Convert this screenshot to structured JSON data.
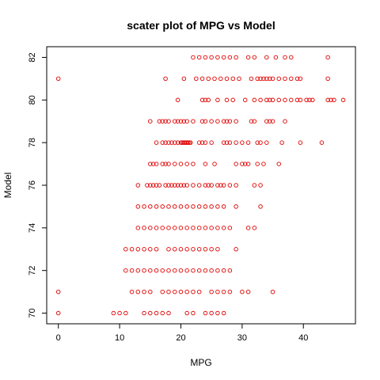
{
  "chart_data": {
    "type": "scatter",
    "title": "scater plot of MPG vs Model",
    "xlabel": "MPG",
    "ylabel": "Model",
    "xlim": [
      -1.9,
      48.5
    ],
    "ylim": [
      69.5,
      82.5
    ],
    "xticks": [
      0,
      10,
      20,
      30,
      40
    ],
    "yticks": [
      70,
      72,
      74,
      76,
      78,
      80,
      82
    ],
    "grid": false,
    "legend": "none",
    "point_color": "#e00000",
    "series": [
      {
        "points": [
          [
            0,
            70
          ],
          [
            9,
            70
          ],
          [
            10,
            70
          ],
          [
            11,
            70
          ],
          [
            14,
            70
          ],
          [
            15,
            70
          ],
          [
            16,
            70
          ],
          [
            17,
            70
          ],
          [
            18,
            70
          ],
          [
            21,
            70
          ],
          [
            22,
            70
          ],
          [
            24,
            70
          ],
          [
            25,
            70
          ],
          [
            26,
            70
          ],
          [
            27,
            70
          ],
          [
            0,
            71
          ],
          [
            12,
            71
          ],
          [
            13,
            71
          ],
          [
            14,
            71
          ],
          [
            15,
            71
          ],
          [
            17,
            71
          ],
          [
            18,
            71
          ],
          [
            19,
            71
          ],
          [
            20,
            71
          ],
          [
            21,
            71
          ],
          [
            22,
            71
          ],
          [
            23,
            71
          ],
          [
            25,
            71
          ],
          [
            26,
            71
          ],
          [
            27,
            71
          ],
          [
            28,
            71
          ],
          [
            30,
            71
          ],
          [
            31,
            71
          ],
          [
            35,
            71
          ],
          [
            11,
            72
          ],
          [
            12,
            72
          ],
          [
            13,
            72
          ],
          [
            14,
            72
          ],
          [
            15,
            72
          ],
          [
            16,
            72
          ],
          [
            17,
            72
          ],
          [
            18,
            72
          ],
          [
            19,
            72
          ],
          [
            20,
            72
          ],
          [
            21,
            72
          ],
          [
            22,
            72
          ],
          [
            23,
            72
          ],
          [
            24,
            72
          ],
          [
            25,
            72
          ],
          [
            26,
            72
          ],
          [
            27,
            72
          ],
          [
            28,
            72
          ],
          [
            11,
            73
          ],
          [
            12,
            73
          ],
          [
            13,
            73
          ],
          [
            14,
            73
          ],
          [
            15,
            73
          ],
          [
            16,
            73
          ],
          [
            18,
            73
          ],
          [
            19,
            73
          ],
          [
            20,
            73
          ],
          [
            21,
            73
          ],
          [
            22,
            73
          ],
          [
            23,
            73
          ],
          [
            24,
            73
          ],
          [
            25,
            73
          ],
          [
            26,
            73
          ],
          [
            29,
            73
          ],
          [
            13,
            74
          ],
          [
            14,
            74
          ],
          [
            15,
            74
          ],
          [
            16,
            74
          ],
          [
            17,
            74
          ],
          [
            18,
            74
          ],
          [
            19,
            74
          ],
          [
            20,
            74
          ],
          [
            21,
            74
          ],
          [
            22,
            74
          ],
          [
            23,
            74
          ],
          [
            24,
            74
          ],
          [
            25,
            74
          ],
          [
            26,
            74
          ],
          [
            27,
            74
          ],
          [
            28,
            74
          ],
          [
            31,
            74
          ],
          [
            32,
            74
          ],
          [
            13,
            75
          ],
          [
            14,
            75
          ],
          [
            15,
            75
          ],
          [
            16,
            75
          ],
          [
            17,
            75
          ],
          [
            18,
            75
          ],
          [
            19,
            75
          ],
          [
            20,
            75
          ],
          [
            21,
            75
          ],
          [
            22,
            75
          ],
          [
            23,
            75
          ],
          [
            24,
            75
          ],
          [
            25,
            75
          ],
          [
            26,
            75
          ],
          [
            27,
            75
          ],
          [
            29,
            75
          ],
          [
            33,
            75
          ],
          [
            13,
            76
          ],
          [
            14.5,
            76
          ],
          [
            15,
            76
          ],
          [
            15.5,
            76
          ],
          [
            16,
            76
          ],
          [
            16.5,
            76
          ],
          [
            17.5,
            76
          ],
          [
            18,
            76
          ],
          [
            18.5,
            76
          ],
          [
            19,
            76
          ],
          [
            19.5,
            76
          ],
          [
            20,
            76
          ],
          [
            20.5,
            76
          ],
          [
            21,
            76
          ],
          [
            22,
            76
          ],
          [
            23,
            76
          ],
          [
            24,
            76
          ],
          [
            24.5,
            76
          ],
          [
            25,
            76
          ],
          [
            26,
            76
          ],
          [
            26.5,
            76
          ],
          [
            27,
            76
          ],
          [
            28,
            76
          ],
          [
            29,
            76
          ],
          [
            32,
            76
          ],
          [
            33,
            76
          ],
          [
            15,
            77
          ],
          [
            15.5,
            77
          ],
          [
            16,
            77
          ],
          [
            17,
            77
          ],
          [
            17.5,
            77
          ],
          [
            18,
            77
          ],
          [
            19,
            77
          ],
          [
            20,
            77
          ],
          [
            21,
            77
          ],
          [
            22,
            77
          ],
          [
            24,
            77
          ],
          [
            25.5,
            77
          ],
          [
            29,
            77
          ],
          [
            30,
            77
          ],
          [
            30.5,
            77
          ],
          [
            31,
            77
          ],
          [
            32.5,
            77
          ],
          [
            33.5,
            77
          ],
          [
            36,
            77
          ],
          [
            16,
            78
          ],
          [
            17,
            78
          ],
          [
            17.5,
            78
          ],
          [
            18,
            78
          ],
          [
            18.5,
            78
          ],
          [
            19,
            78
          ],
          [
            19.5,
            78
          ],
          [
            20,
            78
          ],
          [
            20.2,
            78
          ],
          [
            20.4,
            78
          ],
          [
            20.6,
            78
          ],
          [
            20.8,
            78
          ],
          [
            21,
            78
          ],
          [
            21.2,
            78
          ],
          [
            21.4,
            78
          ],
          [
            21.6,
            78
          ],
          [
            23,
            78
          ],
          [
            23.5,
            78
          ],
          [
            24,
            78
          ],
          [
            25,
            78
          ],
          [
            27,
            78
          ],
          [
            27.5,
            78
          ],
          [
            28,
            78
          ],
          [
            29,
            78
          ],
          [
            30,
            78
          ],
          [
            31,
            78
          ],
          [
            32.5,
            78
          ],
          [
            33,
            78
          ],
          [
            34,
            78
          ],
          [
            36.5,
            78
          ],
          [
            39.5,
            78
          ],
          [
            43,
            78
          ],
          [
            15,
            79
          ],
          [
            16.5,
            79
          ],
          [
            17,
            79
          ],
          [
            17.5,
            79
          ],
          [
            18,
            79
          ],
          [
            19,
            79
          ],
          [
            19.5,
            79
          ],
          [
            20,
            79
          ],
          [
            20.5,
            79
          ],
          [
            21,
            79
          ],
          [
            22,
            79
          ],
          [
            23.5,
            79
          ],
          [
            24,
            79
          ],
          [
            25,
            79
          ],
          [
            26,
            79
          ],
          [
            27,
            79
          ],
          [
            27.5,
            79
          ],
          [
            28,
            79
          ],
          [
            29,
            79
          ],
          [
            31.5,
            79
          ],
          [
            32,
            79
          ],
          [
            34,
            79
          ],
          [
            34.5,
            79
          ],
          [
            35,
            79
          ],
          [
            37,
            79
          ],
          [
            19.5,
            80
          ],
          [
            23.5,
            80
          ],
          [
            24,
            80
          ],
          [
            24.5,
            80
          ],
          [
            26,
            80
          ],
          [
            27.5,
            80
          ],
          [
            28.5,
            80
          ],
          [
            30.5,
            80
          ],
          [
            32,
            80
          ],
          [
            33,
            80
          ],
          [
            34,
            80
          ],
          [
            34.5,
            80
          ],
          [
            35,
            80
          ],
          [
            36,
            80
          ],
          [
            37,
            80
          ],
          [
            38,
            80
          ],
          [
            39,
            80
          ],
          [
            39.5,
            80
          ],
          [
            40.5,
            80
          ],
          [
            41,
            80
          ],
          [
            41.5,
            80
          ],
          [
            44,
            80
          ],
          [
            44.5,
            80
          ],
          [
            45,
            80
          ],
          [
            46.5,
            80
          ],
          [
            0,
            81
          ],
          [
            17.5,
            81
          ],
          [
            20.5,
            81
          ],
          [
            22.5,
            81
          ],
          [
            23.5,
            81
          ],
          [
            24.5,
            81
          ],
          [
            25.5,
            81
          ],
          [
            26.5,
            81
          ],
          [
            27.5,
            81
          ],
          [
            28.5,
            81
          ],
          [
            29.5,
            81
          ],
          [
            31.5,
            81
          ],
          [
            32.5,
            81
          ],
          [
            33,
            81
          ],
          [
            33.5,
            81
          ],
          [
            34,
            81
          ],
          [
            34.5,
            81
          ],
          [
            35,
            81
          ],
          [
            36,
            81
          ],
          [
            37,
            81
          ],
          [
            38,
            81
          ],
          [
            39,
            81
          ],
          [
            39.5,
            81
          ],
          [
            44,
            81
          ],
          [
            22,
            82
          ],
          [
            23,
            82
          ],
          [
            24,
            82
          ],
          [
            25,
            82
          ],
          [
            26,
            82
          ],
          [
            27,
            82
          ],
          [
            28,
            82
          ],
          [
            29,
            82
          ],
          [
            31,
            82
          ],
          [
            32,
            82
          ],
          [
            34,
            82
          ],
          [
            35.5,
            82
          ],
          [
            37,
            82
          ],
          [
            38,
            82
          ],
          [
            44,
            82
          ]
        ]
      }
    ]
  }
}
